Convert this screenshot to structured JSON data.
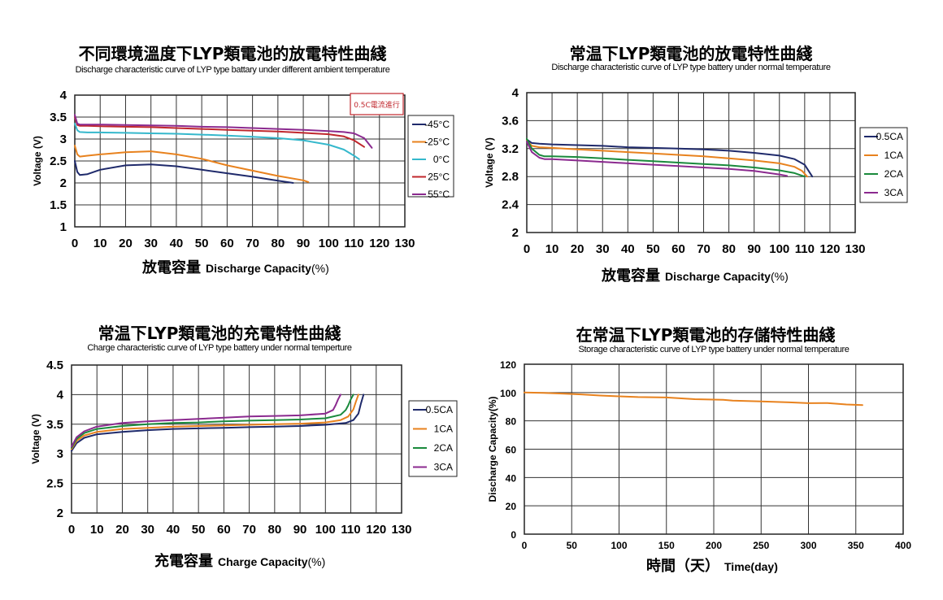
{
  "chart_data": [
    {
      "type": "line",
      "title": "不同環境溫度下LYP類電池的放電特性曲綫",
      "subtitle": "Discharge characteristic curve of LYP type battary under different ambient temperature",
      "xlabel_cn": "放電容量",
      "xlabel_en": "Discharge Capacity",
      "xlabel_unit": "(%)",
      "ylabel": "Voltage (V)",
      "xlim": [
        0,
        130
      ],
      "ylim": [
        1,
        4
      ],
      "xticks": [
        "0",
        "10",
        "20",
        "30",
        "40",
        "50",
        "60",
        "70",
        "80",
        "90",
        "100",
        "110",
        "120",
        "130"
      ],
      "yticks": [
        "1",
        "1.5",
        "2",
        "2.5",
        "3",
        "3.5",
        "4"
      ],
      "annotation": "0.5C電流進行",
      "grid": true,
      "legend_position": "right",
      "series": [
        {
          "name": "-45°C",
          "color": "#1f2a6b",
          "x": [
            0,
            1,
            2,
            5,
            10,
            20,
            30,
            40,
            50,
            60,
            70,
            80,
            86
          ],
          "values": [
            2.5,
            2.25,
            2.18,
            2.2,
            2.3,
            2.4,
            2.42,
            2.38,
            2.3,
            2.22,
            2.14,
            2.05,
            2.0
          ]
        },
        {
          "name": "-25°C",
          "color": "#e8821e",
          "x": [
            0,
            1,
            2,
            5,
            10,
            20,
            30,
            40,
            50,
            60,
            70,
            80,
            90,
            92
          ],
          "values": [
            2.85,
            2.65,
            2.6,
            2.62,
            2.65,
            2.7,
            2.72,
            2.65,
            2.55,
            2.4,
            2.28,
            2.16,
            2.06,
            2.02
          ]
        },
        {
          "name": "0°C",
          "color": "#35b8cc",
          "x": [
            0,
            1,
            2,
            5,
            10,
            20,
            30,
            40,
            50,
            60,
            70,
            80,
            90,
            100,
            106,
            110,
            112
          ],
          "values": [
            3.35,
            3.2,
            3.16,
            3.15,
            3.15,
            3.14,
            3.13,
            3.12,
            3.1,
            3.08,
            3.05,
            3.02,
            2.97,
            2.87,
            2.76,
            2.62,
            2.54
          ]
        },
        {
          "name": "25°C",
          "color": "#c0272d",
          "x": [
            0,
            1,
            2,
            5,
            10,
            20,
            30,
            40,
            50,
            60,
            70,
            80,
            90,
            100,
            106,
            110,
            114
          ],
          "values": [
            3.5,
            3.32,
            3.3,
            3.3,
            3.29,
            3.28,
            3.27,
            3.25,
            3.23,
            3.21,
            3.19,
            3.17,
            3.14,
            3.11,
            3.06,
            2.97,
            2.82
          ]
        },
        {
          "name": "55°C",
          "color": "#8b2a8f",
          "x": [
            0,
            1,
            2,
            5,
            10,
            20,
            30,
            40,
            50,
            60,
            70,
            80,
            90,
            100,
            106,
            110,
            114,
            117
          ],
          "values": [
            3.55,
            3.35,
            3.33,
            3.33,
            3.33,
            3.32,
            3.31,
            3.3,
            3.28,
            3.27,
            3.25,
            3.23,
            3.21,
            3.18,
            3.16,
            3.13,
            3.02,
            2.8
          ]
        }
      ]
    },
    {
      "type": "line",
      "title": "常温下LYP類電池的放電特性曲綫",
      "subtitle": "Discharge characteristic curve of LYP  type battery under normal temperature",
      "xlabel_cn": "放電容量",
      "xlabel_en": "Discharge Capacity",
      "xlabel_unit": "(%)",
      "ylabel": "Voltage (V)",
      "xlim": [
        0,
        130
      ],
      "ylim": [
        2,
        4
      ],
      "xticks": [
        "0",
        "10",
        "20",
        "30",
        "40",
        "50",
        "60",
        "70",
        "80",
        "90",
        "100",
        "110",
        "120",
        "130"
      ],
      "yticks": [
        "2",
        "2.4",
        "2.8",
        "3.2",
        "3.6",
        "4"
      ],
      "grid": true,
      "legend_position": "right",
      "series": [
        {
          "name": "0.5CA",
          "color": "#1f2a6b",
          "x": [
            0,
            2,
            5,
            10,
            20,
            30,
            40,
            50,
            60,
            70,
            80,
            90,
            100,
            106,
            110,
            113
          ],
          "values": [
            3.33,
            3.28,
            3.27,
            3.26,
            3.25,
            3.24,
            3.22,
            3.21,
            3.2,
            3.19,
            3.17,
            3.14,
            3.1,
            3.05,
            2.97,
            2.8
          ]
        },
        {
          "name": "1CA",
          "color": "#e8821e",
          "x": [
            0,
            2,
            5,
            10,
            20,
            30,
            40,
            50,
            60,
            70,
            80,
            90,
            100,
            106,
            109,
            111
          ],
          "values": [
            3.32,
            3.24,
            3.22,
            3.21,
            3.19,
            3.17,
            3.15,
            3.13,
            3.11,
            3.09,
            3.06,
            3.03,
            2.99,
            2.94,
            2.88,
            2.8
          ]
        },
        {
          "name": "2CA",
          "color": "#1a8a3c",
          "x": [
            0,
            2,
            5,
            7,
            10,
            20,
            30,
            40,
            50,
            60,
            70,
            80,
            90,
            100,
            106,
            110
          ],
          "values": [
            3.34,
            3.2,
            3.11,
            3.09,
            3.09,
            3.08,
            3.06,
            3.04,
            3.02,
            3.0,
            2.98,
            2.96,
            2.93,
            2.89,
            2.85,
            2.8
          ]
        },
        {
          "name": "3CA",
          "color": "#8b2a8f",
          "x": [
            0,
            2,
            5,
            7,
            10,
            20,
            30,
            40,
            50,
            60,
            70,
            80,
            90,
            100,
            103
          ],
          "values": [
            3.3,
            3.15,
            3.07,
            3.05,
            3.05,
            3.03,
            3.01,
            2.99,
            2.97,
            2.95,
            2.93,
            2.91,
            2.88,
            2.83,
            2.81
          ]
        }
      ]
    },
    {
      "type": "line",
      "title": "常温下LYP類電池的充電特性曲綫",
      "subtitle": "Charge characteristic curve of LYP type battery under normal temperture",
      "xlabel_cn": "充電容量",
      "xlabel_en": "Charge Capacity",
      "xlabel_unit": "(%)",
      "ylabel": "Voltage (V)",
      "xlim": [
        0,
        130
      ],
      "ylim": [
        2,
        4.5
      ],
      "xticks": [
        "0",
        "10",
        "20",
        "30",
        "40",
        "50",
        "60",
        "70",
        "80",
        "90",
        "100",
        "110",
        "120",
        "130"
      ],
      "yticks": [
        "2",
        "2.5",
        "3",
        "3.5",
        "4",
        "4.5"
      ],
      "grid": true,
      "legend_position": "right",
      "series": [
        {
          "name": "0.5CA",
          "color": "#1f2a6b",
          "x": [
            0,
            2,
            5,
            10,
            20,
            30,
            40,
            50,
            60,
            70,
            80,
            90,
            100,
            108,
            111,
            113,
            114,
            115
          ],
          "values": [
            3.05,
            3.18,
            3.27,
            3.33,
            3.37,
            3.4,
            3.42,
            3.43,
            3.44,
            3.45,
            3.46,
            3.47,
            3.49,
            3.52,
            3.57,
            3.68,
            3.85,
            4.0
          ]
        },
        {
          "name": "1CA",
          "color": "#e8821e",
          "x": [
            0,
            2,
            5,
            10,
            20,
            30,
            40,
            50,
            60,
            70,
            80,
            90,
            100,
            106,
            109,
            111,
            112,
            113
          ],
          "values": [
            3.08,
            3.22,
            3.31,
            3.37,
            3.42,
            3.44,
            3.46,
            3.47,
            3.48,
            3.49,
            3.5,
            3.51,
            3.53,
            3.57,
            3.63,
            3.75,
            3.88,
            4.0
          ]
        },
        {
          "name": "2CA",
          "color": "#1a8a3c",
          "x": [
            0,
            2,
            5,
            10,
            20,
            30,
            40,
            50,
            60,
            70,
            80,
            90,
            100,
            106,
            108,
            109,
            110,
            111
          ],
          "values": [
            3.1,
            3.25,
            3.35,
            3.42,
            3.47,
            3.5,
            3.52,
            3.53,
            3.55,
            3.56,
            3.57,
            3.58,
            3.6,
            3.66,
            3.74,
            3.82,
            3.92,
            4.0
          ]
        },
        {
          "name": "3CA",
          "color": "#8b2a8f",
          "x": [
            0,
            2,
            5,
            10,
            20,
            30,
            40,
            50,
            60,
            70,
            80,
            90,
            100,
            103,
            104,
            105,
            106
          ],
          "values": [
            3.12,
            3.28,
            3.38,
            3.46,
            3.52,
            3.55,
            3.57,
            3.59,
            3.61,
            3.63,
            3.64,
            3.65,
            3.68,
            3.74,
            3.82,
            3.92,
            4.0
          ]
        }
      ]
    },
    {
      "type": "line",
      "title": "在常温下LYP類電池的存儲特性曲綫",
      "subtitle": "Storage characteristic curve of LYP type battery under normal temperature",
      "xlabel_cn": "時間（天）",
      "xlabel_en": "Time(day)",
      "ylabel": "Discharge Capacity(%)",
      "xlim": [
        0,
        400
      ],
      "ylim": [
        0,
        120
      ],
      "xticks": [
        "0",
        "50",
        "100",
        "150",
        "200",
        "250",
        "300",
        "350",
        "400"
      ],
      "yticks": [
        "0",
        "20",
        "40",
        "60",
        "80",
        "100",
        "120"
      ],
      "grid": true,
      "series": [
        {
          "name": "",
          "color": "#e8821e",
          "x": [
            0,
            20,
            40,
            60,
            80,
            100,
            120,
            150,
            180,
            200,
            210,
            220,
            250,
            280,
            300,
            320,
            340,
            357
          ],
          "values": [
            100,
            99.8,
            99.3,
            98.7,
            97.9,
            97.3,
            96.8,
            96.5,
            95.3,
            95.0,
            94.9,
            94.3,
            93.7,
            93.1,
            92.5,
            92.6,
            91.6,
            91.2
          ]
        }
      ]
    }
  ]
}
